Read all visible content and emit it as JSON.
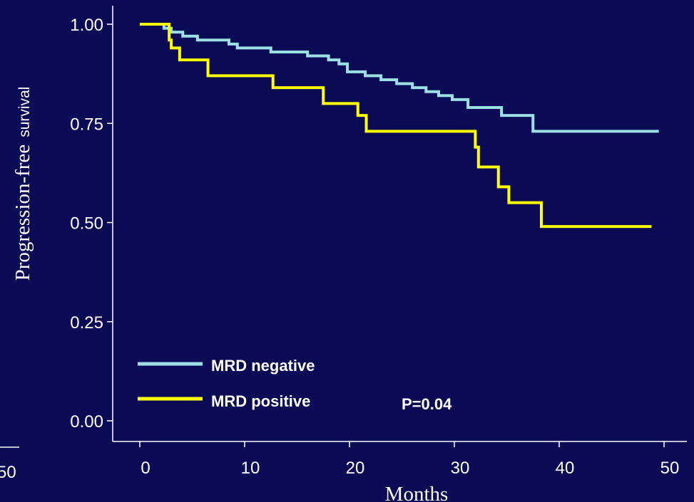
{
  "chart_data": {
    "type": "line",
    "step": true,
    "ylabel_main": "Progression-free",
    "ylabel_small": "survival",
    "xlabel": "Months",
    "xlim": [
      0,
      50
    ],
    "ylim": [
      0,
      1
    ],
    "x_ticks": [
      "0",
      "10",
      "20",
      "30",
      "40",
      "50"
    ],
    "y_ticks": [
      "0.00",
      "0.25",
      "0.50",
      "0.75",
      "1.00"
    ],
    "edge_tick_label": "50",
    "annotation": "P=0.04",
    "colors": {
      "background": "#0a0a55",
      "axis": "#ffffff",
      "negative": "#9ce0e6",
      "positive": "#ffff00"
    },
    "series": [
      {
        "name": "MRD negative",
        "color": "#9ce0e6",
        "x": [
          0,
          2.3,
          3.0,
          4.1,
          5.5,
          8.5,
          9.3,
          12.5,
          16.0,
          18.0,
          19.0,
          19.8,
          21.5,
          23.0,
          24.5,
          26.0,
          27.3,
          28.5,
          29.8,
          31.3,
          34.5,
          37.5,
          49.5
        ],
        "y": [
          1.0,
          0.99,
          0.98,
          0.97,
          0.96,
          0.95,
          0.94,
          0.93,
          0.92,
          0.91,
          0.9,
          0.88,
          0.87,
          0.86,
          0.85,
          0.84,
          0.83,
          0.82,
          0.81,
          0.79,
          0.77,
          0.73,
          0.73
        ]
      },
      {
        "name": "MRD positive",
        "color": "#ffff00",
        "x": [
          0,
          2.8,
          3.0,
          3.8,
          6.5,
          12.7,
          17.5,
          20.8,
          21.6,
          32.0,
          32.3,
          34.2,
          35.2,
          38.3,
          48.8
        ],
        "y": [
          1.0,
          0.96,
          0.94,
          0.91,
          0.87,
          0.84,
          0.8,
          0.77,
          0.73,
          0.69,
          0.64,
          0.59,
          0.55,
          0.49,
          0.49
        ]
      }
    ]
  }
}
